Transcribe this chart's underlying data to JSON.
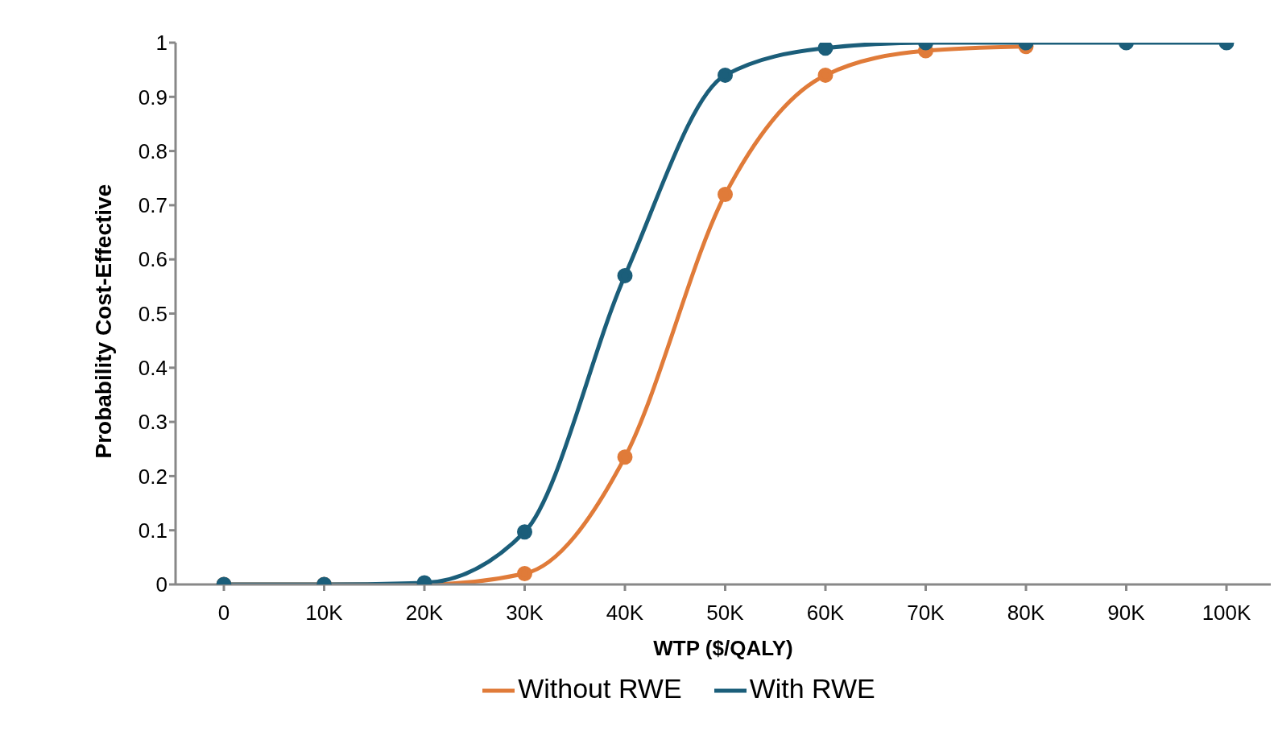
{
  "chart_data": {
    "type": "line",
    "xlabel": "WTP ($/QALY)",
    "ylabel": "Probability Cost-Effective",
    "categories": [
      "0",
      "10K",
      "20K",
      "30K",
      "40K",
      "50K",
      "60K",
      "70K",
      "80K",
      "90K",
      "100K"
    ],
    "series": [
      {
        "name": "Without RWE",
        "color": "#e07b39",
        "values": [
          0,
          0,
          0,
          0.02,
          0.235,
          0.72,
          0.94,
          0.985,
          0.993,
          null,
          null
        ]
      },
      {
        "name": "With RWE",
        "color": "#1b5e7a",
        "values": [
          0,
          0,
          0.003,
          0.097,
          0.57,
          0.94,
          0.99,
          1,
          1,
          1,
          1
        ]
      }
    ],
    "ylim": [
      0,
      1
    ],
    "yticks": [
      0,
      0.1,
      0.2,
      0.3,
      0.4,
      0.5,
      0.6,
      0.7,
      0.8,
      0.9,
      1
    ],
    "grid": false,
    "legend": "bottom",
    "marker": "circle",
    "line_style": "solid"
  }
}
